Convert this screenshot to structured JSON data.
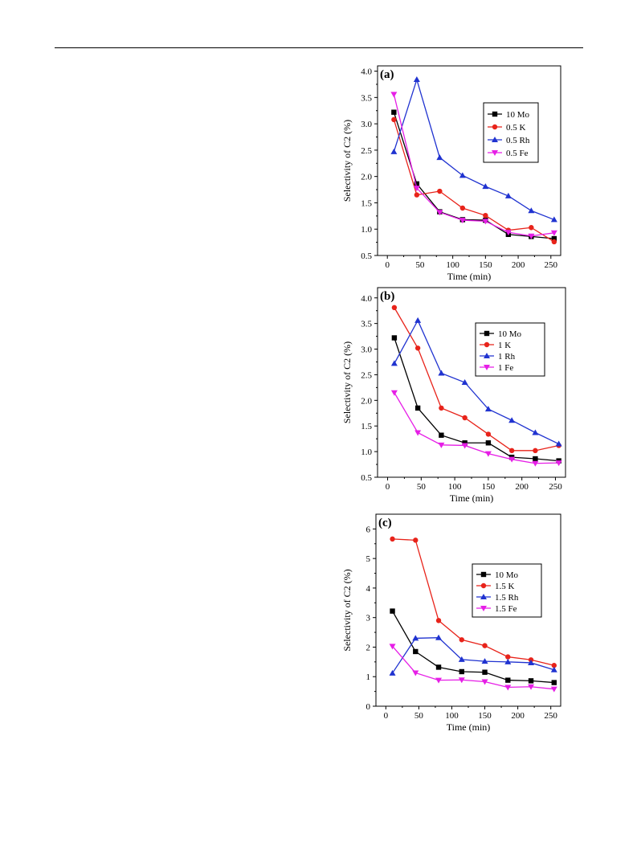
{
  "chart_data": [
    {
      "type": "line",
      "panel_label": "(a)",
      "xlabel": "Time (min)",
      "ylabel": "Selectivity of C2 (%)",
      "xlim": [
        -15,
        265
      ],
      "ylim": [
        0.5,
        4.1
      ],
      "xticks": [
        0,
        50,
        100,
        150,
        200,
        250
      ],
      "yticks": [
        0.5,
        1.0,
        1.5,
        2.0,
        2.5,
        3.0,
        3.5,
        4.0
      ],
      "ytick_decimals": 1,
      "legend_position": "top-right",
      "series": [
        {
          "name": "10 Mo",
          "color": "#000000",
          "marker": "square",
          "x": [
            10,
            45,
            80,
            115,
            150,
            185,
            220,
            255
          ],
          "y": [
            3.22,
            1.86,
            1.33,
            1.18,
            1.17,
            0.9,
            0.86,
            0.82
          ]
        },
        {
          "name": "0.5 K",
          "color": "#e8231a",
          "marker": "circle",
          "x": [
            10,
            45,
            80,
            115,
            150,
            185,
            220,
            255
          ],
          "y": [
            3.08,
            1.65,
            1.72,
            1.4,
            1.26,
            0.98,
            1.03,
            0.76
          ]
        },
        {
          "name": "0.5 Rh",
          "color": "#2033d0",
          "marker": "triangle-up",
          "x": [
            10,
            45,
            80,
            115,
            150,
            185,
            220,
            255
          ],
          "y": [
            2.47,
            3.84,
            2.36,
            2.02,
            1.81,
            1.63,
            1.35,
            1.18
          ]
        },
        {
          "name": "0.5 Fe",
          "color": "#e61ee6",
          "marker": "triangle-down",
          "x": [
            10,
            45,
            80,
            115,
            150,
            185,
            220,
            255
          ],
          "y": [
            3.56,
            1.78,
            1.32,
            1.17,
            1.15,
            0.94,
            0.87,
            0.93
          ]
        }
      ]
    },
    {
      "type": "line",
      "panel_label": "(b)",
      "xlabel": "Time (min)",
      "ylabel": "Selectivity of C2 (%)",
      "xlim": [
        -15,
        265
      ],
      "ylim": [
        0.5,
        4.2
      ],
      "xticks": [
        0,
        50,
        100,
        150,
        200,
        250
      ],
      "yticks": [
        0.5,
        1.0,
        1.5,
        2.0,
        2.5,
        3.0,
        3.5,
        4.0
      ],
      "ytick_decimals": 1,
      "legend_position": "top-right",
      "series": [
        {
          "name": "10 Mo",
          "color": "#000000",
          "marker": "square",
          "x": [
            10,
            45,
            80,
            115,
            150,
            185,
            220,
            255
          ],
          "y": [
            3.22,
            1.85,
            1.32,
            1.17,
            1.17,
            0.89,
            0.86,
            0.82
          ]
        },
        {
          "name": "1 K",
          "color": "#e8231a",
          "marker": "circle",
          "x": [
            10,
            45,
            80,
            115,
            150,
            185,
            220,
            255
          ],
          "y": [
            3.81,
            3.02,
            1.85,
            1.66,
            1.34,
            1.02,
            1.02,
            1.12
          ]
        },
        {
          "name": "1 Rh",
          "color": "#2033d0",
          "marker": "triangle-up",
          "x": [
            10,
            45,
            80,
            115,
            150,
            185,
            220,
            255
          ],
          "y": [
            2.72,
            3.56,
            2.53,
            2.35,
            1.83,
            1.61,
            1.37,
            1.15
          ]
        },
        {
          "name": "1 Fe",
          "color": "#e61ee6",
          "marker": "triangle-down",
          "x": [
            10,
            45,
            80,
            115,
            150,
            185,
            220,
            255
          ],
          "y": [
            2.15,
            1.37,
            1.13,
            1.12,
            0.96,
            0.85,
            0.77,
            0.78
          ]
        }
      ]
    },
    {
      "type": "line",
      "panel_label": "(c)",
      "xlabel": "Time (min)",
      "ylabel": "Selectivity of C2 (%)",
      "xlim": [
        -15,
        265
      ],
      "ylim": [
        0,
        6.5
      ],
      "xticks": [
        0,
        50,
        100,
        150,
        200,
        250
      ],
      "yticks": [
        0,
        1,
        2,
        3,
        4,
        5,
        6
      ],
      "ytick_decimals": 0,
      "legend_position": "right",
      "series": [
        {
          "name": "10 Mo",
          "color": "#000000",
          "marker": "square",
          "x": [
            10,
            45,
            80,
            115,
            150,
            185,
            220,
            255
          ],
          "y": [
            3.22,
            1.85,
            1.32,
            1.17,
            1.15,
            0.88,
            0.86,
            0.8
          ]
        },
        {
          "name": "1.5 K",
          "color": "#e8231a",
          "marker": "circle",
          "x": [
            10,
            45,
            80,
            115,
            150,
            185,
            220,
            255
          ],
          "y": [
            5.66,
            5.62,
            2.9,
            2.25,
            2.05,
            1.67,
            1.57,
            1.38
          ]
        },
        {
          "name": "1.5 Rh",
          "color": "#2033d0",
          "marker": "triangle-up",
          "x": [
            10,
            45,
            80,
            115,
            150,
            185,
            220,
            255
          ],
          "y": [
            1.12,
            2.3,
            2.32,
            1.58,
            1.52,
            1.5,
            1.47,
            1.23
          ]
        },
        {
          "name": "1.5 Fe",
          "color": "#e61ee6",
          "marker": "triangle-down",
          "x": [
            10,
            45,
            80,
            115,
            150,
            185,
            220,
            255
          ],
          "y": [
            2.03,
            1.13,
            0.88,
            0.89,
            0.83,
            0.64,
            0.66,
            0.58
          ]
        }
      ]
    }
  ]
}
